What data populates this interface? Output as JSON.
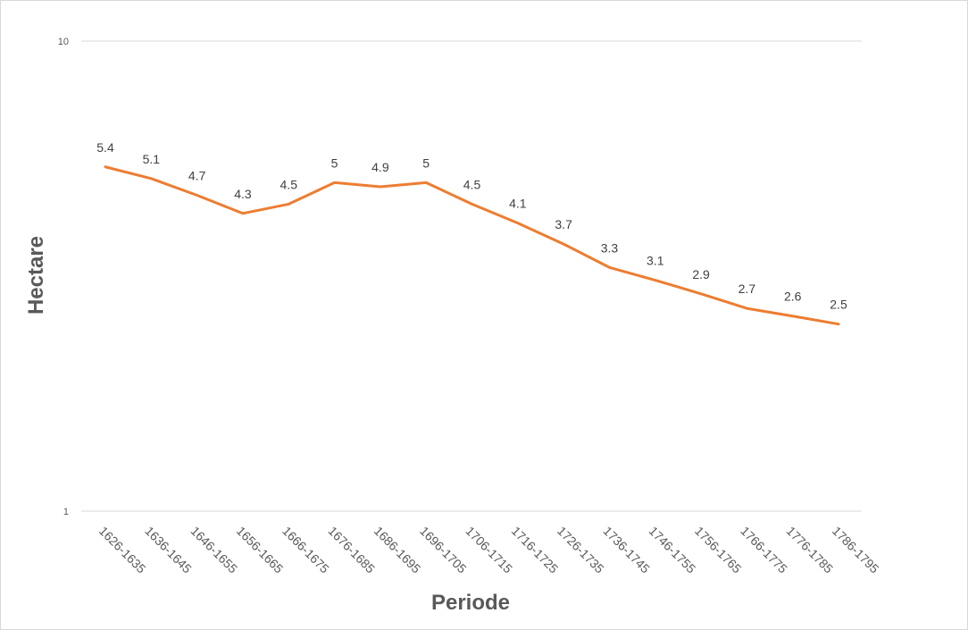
{
  "chart_data": {
    "type": "line",
    "title": "",
    "xlabel": "Periode",
    "ylabel": "Hectare",
    "y_scale": "log",
    "ylim": [
      1,
      10
    ],
    "y_ticks": [
      "1",
      "10"
    ],
    "grid": true,
    "legend": "none",
    "categories": [
      "1626-1635",
      "1636-1645",
      "1646-1655",
      "1656-1665",
      "1666-1675",
      "1676-1685",
      "1686-1695",
      "1696-1705",
      "1706-1715",
      "1716-1725",
      "1726-1735",
      "1736-1745",
      "1746-1755",
      "1756-1765",
      "1766-1775",
      "1776-1785",
      "1786-1795"
    ],
    "series": [
      {
        "values": [
          5.4,
          5.1,
          4.7,
          4.3,
          4.5,
          5,
          4.9,
          5,
          4.5,
          4.1,
          3.7,
          3.3,
          3.1,
          2.9,
          2.7,
          2.6,
          2.5
        ],
        "labels": [
          "5.4",
          "5.1",
          "4.7",
          "4.3",
          "4.5",
          "5",
          "4.9",
          "5",
          "4.5",
          "4.1",
          "3.7",
          "3.3",
          "3.1",
          "2.9",
          "2.7",
          "2.6",
          "2.5"
        ],
        "color": "#ED7D31"
      }
    ]
  }
}
